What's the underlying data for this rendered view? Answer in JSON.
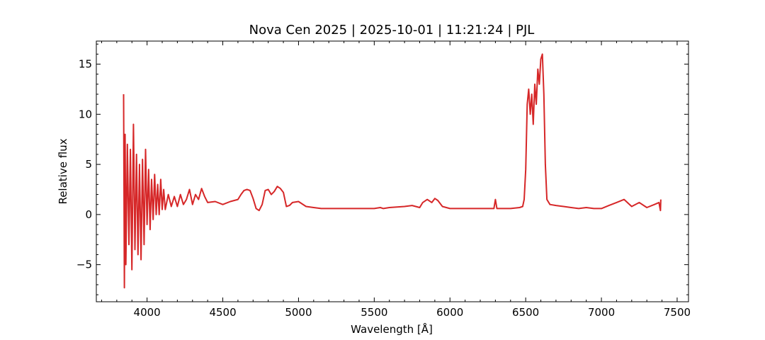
{
  "chart_data": {
    "type": "line",
    "title": "Nova Cen 2025 | 2025-10-01 | 11:21:24 | PJL",
    "xlabel": "Wavelength [Å]",
    "ylabel": "Relative flux",
    "xlim": [
      3665,
      7575
    ],
    "ylim": [
      -8.7,
      17.3
    ],
    "x_ticks": [
      4000,
      4500,
      5000,
      5500,
      6000,
      6500,
      7000,
      7500
    ],
    "x_tick_labels": [
      "4000",
      "4500",
      "5000",
      "5500",
      "6000",
      "6500",
      "7000",
      "7500"
    ],
    "y_ticks": [
      -5,
      0,
      5,
      10,
      15
    ],
    "y_tick_labels": [
      "−5",
      "0",
      "5",
      "10",
      "15"
    ],
    "grid": false,
    "line_color": "#d62728",
    "series": [
      {
        "x": [
          3845,
          3850,
          3855,
          3860,
          3870,
          3880,
          3890,
          3900,
          3910,
          3920,
          3930,
          3940,
          3950,
          3960,
          3970,
          3980,
          3990,
          4000,
          4010,
          4020,
          4030,
          4040,
          4050,
          4060,
          4070,
          4080,
          4090,
          4100,
          4110,
          4120,
          4140,
          4160,
          4180,
          4200,
          4220,
          4240,
          4260,
          4280,
          4300,
          4320,
          4340,
          4360,
          4380,
          4400,
          4450,
          4500,
          4550,
          4600,
          4620,
          4640,
          4660,
          4680,
          4700,
          4720,
          4740,
          4760,
          4780,
          4800,
          4820,
          4840,
          4860,
          4880,
          4900,
          4920,
          4940,
          4960,
          5000,
          5050,
          5100,
          5150,
          5200,
          5300,
          5400,
          5500,
          5540,
          5560,
          5600,
          5700,
          5750,
          5800,
          5820,
          5850,
          5880,
          5900,
          5920,
          5950,
          6000,
          6100,
          6200,
          6290,
          6300,
          6310,
          6400,
          6460,
          6480,
          6490,
          6500,
          6510,
          6520,
          6530,
          6540,
          6550,
          6560,
          6570,
          6580,
          6590,
          6600,
          6610,
          6620,
          6630,
          6640,
          6660,
          6700,
          6750,
          6800,
          6850,
          6900,
          6950,
          7000,
          7050,
          7100,
          7150,
          7200,
          7250,
          7300,
          7350,
          7380,
          7390,
          7392
        ],
        "y": [
          12.0,
          -7.3,
          8.0,
          -5.0,
          7.0,
          -3.0,
          6.5,
          -5.5,
          9.0,
          -3.5,
          6.0,
          -4.0,
          5.0,
          -4.5,
          5.5,
          -3.0,
          6.5,
          -1.0,
          4.5,
          -1.5,
          3.5,
          -0.5,
          4.0,
          0.0,
          3.0,
          0.0,
          3.5,
          0.5,
          2.5,
          0.5,
          2.0,
          0.8,
          1.8,
          0.8,
          2.0,
          1.0,
          1.5,
          2.5,
          1.0,
          2.0,
          1.5,
          2.6,
          1.8,
          1.2,
          1.3,
          1.0,
          1.3,
          1.5,
          2.0,
          2.4,
          2.5,
          2.4,
          1.6,
          0.6,
          0.4,
          1.0,
          2.4,
          2.5,
          2.0,
          2.3,
          2.8,
          2.6,
          2.2,
          0.8,
          0.9,
          1.2,
          1.3,
          0.8,
          0.7,
          0.6,
          0.6,
          0.6,
          0.6,
          0.6,
          0.7,
          0.6,
          0.7,
          0.8,
          0.9,
          0.7,
          1.2,
          1.5,
          1.2,
          1.6,
          1.4,
          0.8,
          0.6,
          0.6,
          0.6,
          0.6,
          1.5,
          0.6,
          0.6,
          0.7,
          0.8,
          1.5,
          4.5,
          11.0,
          12.5,
          10.0,
          12.0,
          9.0,
          13.0,
          11.0,
          14.5,
          13.0,
          15.5,
          16.0,
          12.0,
          5.0,
          1.5,
          1.0,
          0.9,
          0.8,
          0.7,
          0.6,
          0.7,
          0.6,
          0.6,
          0.9,
          1.2,
          1.5,
          0.8,
          1.2,
          0.7,
          1.0,
          1.2,
          0.4,
          1.5
        ]
      }
    ]
  }
}
